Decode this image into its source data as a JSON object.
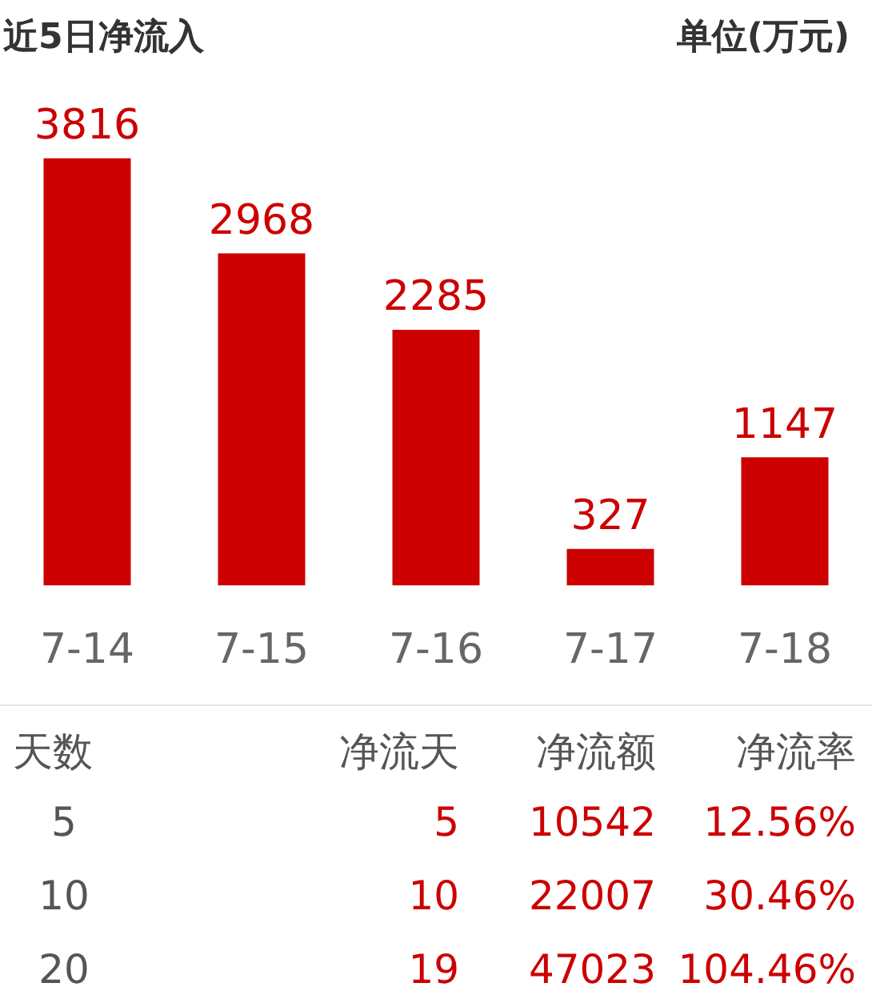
{
  "chart_data": [
    {
      "type": "bar",
      "title": "近5日净流入",
      "annotations": [
        "单位(万元)"
      ],
      "categories": [
        "7-14",
        "7-15",
        "7-16",
        "7-17",
        "7-18"
      ],
      "values": [
        3816,
        2968,
        2285,
        327,
        1147
      ],
      "color": "#cc0000",
      "data_labels": true,
      "grid": false,
      "legend": false
    },
    {
      "type": "other",
      "annotations": [
        "天数",
        "净流天",
        "净流额",
        "净流率",
        "5",
        "5",
        "10542",
        "12.56%",
        "10",
        "10",
        "22007",
        "30.46%",
        "20",
        "19",
        "47023",
        "104.46%"
      ]
    }
  ]
}
